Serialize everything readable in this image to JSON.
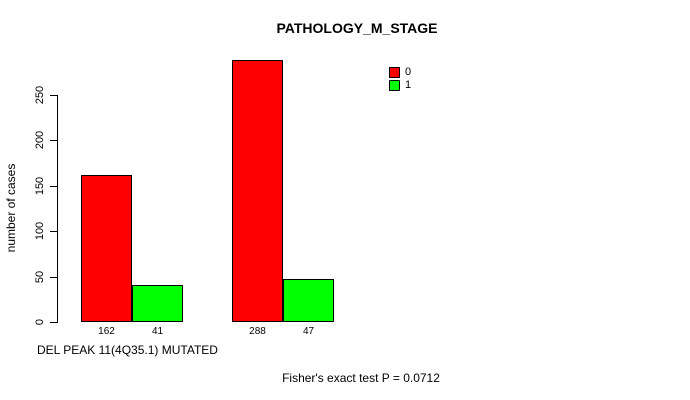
{
  "title": "PATHOLOGY_M_STAGE",
  "y_axis": {
    "label": "number of cases"
  },
  "x_axis": {
    "label": "DEL PEAK 11(4Q35.1) MUTATED"
  },
  "legend": {
    "items": [
      {
        "label": "0",
        "color": "#FF0000"
      },
      {
        "label": "1",
        "color": "#00FF00"
      }
    ]
  },
  "footer": {
    "text": "Fisher's exact test P = 0.0712"
  },
  "chart_data": {
    "type": "bar",
    "title": "PATHOLOGY_M_STAGE",
    "xlabel": "DEL PEAK 11(4Q35.1) MUTATED",
    "ylabel": "number of cases",
    "categories": [
      "",
      ""
    ],
    "series": [
      {
        "name": "0",
        "color": "#FF0000",
        "values": [
          162,
          288
        ]
      },
      {
        "name": "1",
        "color": "#00FF00",
        "values": [
          41,
          47
        ]
      }
    ],
    "bar_value_labels": [
      [
        162,
        41
      ],
      [
        288,
        47
      ]
    ],
    "yticks": [
      0,
      50,
      100,
      150,
      200,
      250
    ],
    "ylim": [
      0,
      290
    ],
    "grid": false,
    "legend_position": "top-right",
    "legend_entries": [
      "0",
      "1"
    ],
    "annotation": "Fisher's exact test P = 0.0712"
  }
}
